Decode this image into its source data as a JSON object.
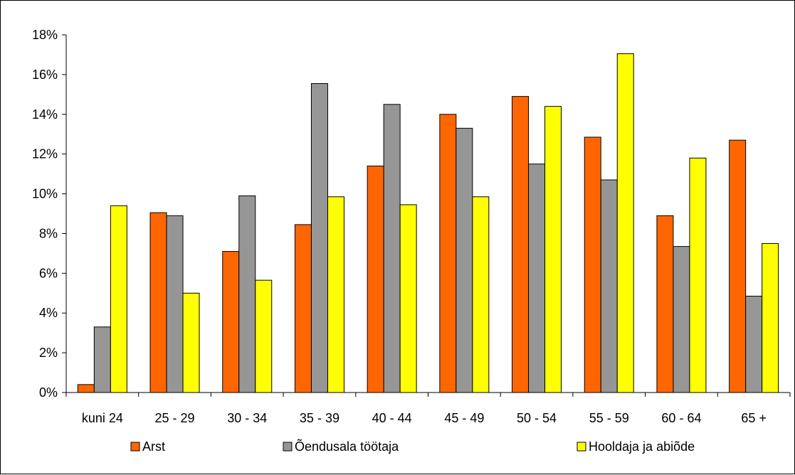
{
  "chart_data": {
    "type": "bar",
    "categories": [
      "kuni 24",
      "25 - 29",
      "30 - 34",
      "35 - 39",
      "40 - 44",
      "45 - 49",
      "50 - 54",
      "55 - 59",
      "60 - 64",
      "65 +"
    ],
    "series": [
      {
        "name": "Arst",
        "color": "#FF6600",
        "values": [
          0.4,
          9.05,
          7.1,
          8.45,
          11.4,
          14.0,
          14.9,
          12.85,
          8.9,
          12.7
        ]
      },
      {
        "name": "Õendusala töötaja",
        "color": "#969696",
        "values": [
          3.3,
          8.9,
          9.9,
          15.55,
          14.5,
          13.3,
          11.5,
          10.7,
          7.35,
          4.85
        ]
      },
      {
        "name": "Hooldaja ja abiõde",
        "color": "#FFFF00",
        "values": [
          9.4,
          5.0,
          5.65,
          9.85,
          9.45,
          9.85,
          14.4,
          17.05,
          11.8,
          7.5
        ]
      }
    ],
    "y_ticks": [
      "0%",
      "2%",
      "4%",
      "6%",
      "8%",
      "10%",
      "12%",
      "14%",
      "16%",
      "18%"
    ],
    "ylim": [
      0,
      18
    ],
    "y_unit": "%",
    "grid": false,
    "legend_position": "bottom"
  }
}
